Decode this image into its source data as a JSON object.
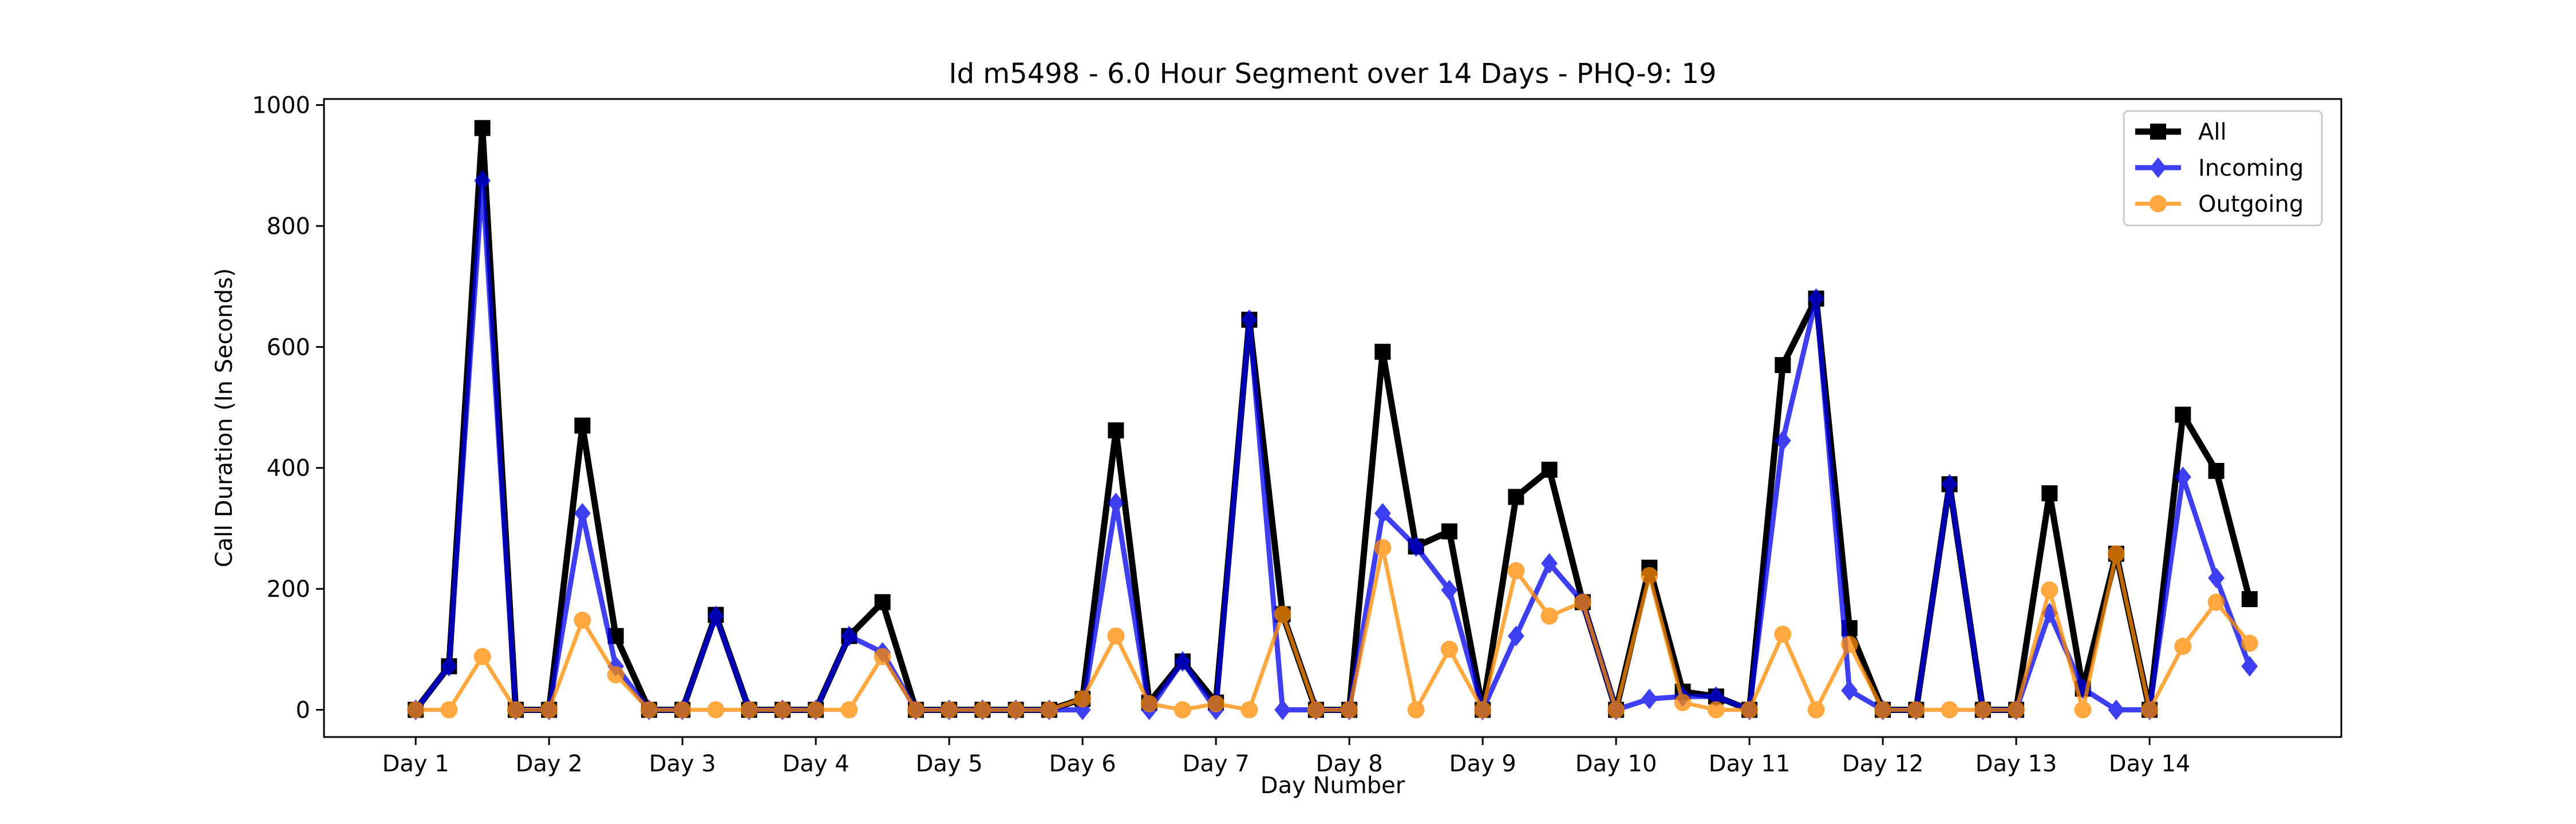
{
  "chart_data": {
    "type": "line",
    "title": "Id m5498 - 6.0 Hour Segment over 14 Days - PHQ-9: 19",
    "xlabel": "Day Number",
    "ylabel": "Call Duration (In Seconds)",
    "ylim": [
      -45,
      1010
    ],
    "xlim": [
      -2.75,
      57.75
    ],
    "yticks": [
      0,
      200,
      400,
      600,
      800,
      1000
    ],
    "xticks": [
      {
        "x": 0,
        "label": "Day 1"
      },
      {
        "x": 4,
        "label": "Day 2"
      },
      {
        "x": 8,
        "label": "Day 3"
      },
      {
        "x": 12,
        "label": "Day 4"
      },
      {
        "x": 16,
        "label": "Day 5"
      },
      {
        "x": 20,
        "label": "Day 6"
      },
      {
        "x": 24,
        "label": "Day 7"
      },
      {
        "x": 28,
        "label": "Day 8"
      },
      {
        "x": 32,
        "label": "Day 9"
      },
      {
        "x": 36,
        "label": "Day 10"
      },
      {
        "x": 40,
        "label": "Day 11"
      },
      {
        "x": 44,
        "label": "Day 12"
      },
      {
        "x": 48,
        "label": "Day 13"
      },
      {
        "x": 52,
        "label": "Day 14"
      }
    ],
    "legend_position": "top-right",
    "grid": false,
    "series": [
      {
        "name": "All",
        "color": "#000000",
        "marker": "square",
        "values": [
          0,
          72,
          962,
          0,
          0,
          470,
          122,
          0,
          0,
          157,
          0,
          0,
          0,
          122,
          178,
          0,
          0,
          0,
          0,
          0,
          18,
          462,
          12,
          80,
          12,
          645,
          158,
          0,
          0,
          592,
          270,
          295,
          0,
          352,
          397,
          178,
          0,
          235,
          30,
          22,
          0,
          570,
          680,
          135,
          0,
          0,
          373,
          0,
          0,
          358,
          35,
          258,
          0,
          488,
          395,
          183
        ]
      },
      {
        "name": "Incoming",
        "color": "#0000ee",
        "marker": "diamond",
        "values": [
          0,
          72,
          875,
          0,
          0,
          325,
          72,
          0,
          0,
          155,
          0,
          0,
          0,
          122,
          95,
          0,
          0,
          0,
          0,
          0,
          0,
          342,
          0,
          80,
          0,
          645,
          0,
          0,
          0,
          325,
          270,
          198,
          0,
          122,
          242,
          178,
          0,
          18,
          22,
          22,
          0,
          445,
          680,
          32,
          0,
          0,
          373,
          0,
          0,
          160,
          35,
          0,
          0,
          385,
          218,
          72
        ]
      },
      {
        "name": "Outgoing",
        "color": "#ff8c00",
        "marker": "circle",
        "values": [
          0,
          0,
          88,
          0,
          0,
          148,
          58,
          0,
          0,
          0,
          0,
          0,
          0,
          0,
          88,
          0,
          0,
          0,
          0,
          0,
          18,
          122,
          10,
          0,
          10,
          0,
          158,
          0,
          0,
          268,
          0,
          100,
          0,
          230,
          155,
          178,
          0,
          222,
          12,
          0,
          0,
          125,
          0,
          108,
          0,
          0,
          0,
          0,
          0,
          198,
          0,
          258,
          0,
          105,
          178,
          110
        ]
      }
    ]
  }
}
